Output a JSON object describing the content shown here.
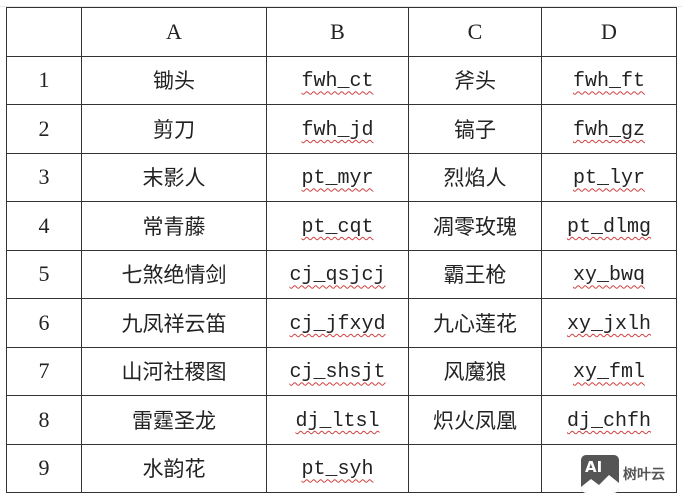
{
  "table": {
    "headers": [
      "",
      "A",
      "B",
      "C",
      "D"
    ],
    "rows": [
      [
        "1",
        "锄头",
        "fwh_ct",
        "斧头",
        "fwh_ft"
      ],
      [
        "2",
        "剪刀",
        "fwh_jd",
        "镐子",
        "fwh_gz"
      ],
      [
        "3",
        "末影人",
        "pt_myr",
        "烈焰人",
        "pt_lyr"
      ],
      [
        "4",
        "常青藤",
        "pt_cqt",
        "凋零玫瑰",
        "pt_dlmg"
      ],
      [
        "5",
        "七煞绝情剑",
        "cj_qsjcj",
        "霸王枪",
        "xy_bwq"
      ],
      [
        "6",
        "九凤祥云笛",
        "cj_jfxyd",
        "九心莲花",
        "xy_jxlh"
      ],
      [
        "7",
        "山河社稷图",
        "cj_shsjt",
        "风魔狼",
        "xy_fml"
      ],
      [
        "8",
        "雷霆圣龙",
        "dj_ltsl",
        "炽火凤凰",
        "dj_chfh"
      ],
      [
        "9",
        "水韵花",
        "pt_syh",
        "",
        ""
      ]
    ]
  },
  "watermark": {
    "logo_text": "AI",
    "brand": "树叶云"
  },
  "colors": {
    "border": "#333333",
    "spellcheck": "#d04040"
  }
}
